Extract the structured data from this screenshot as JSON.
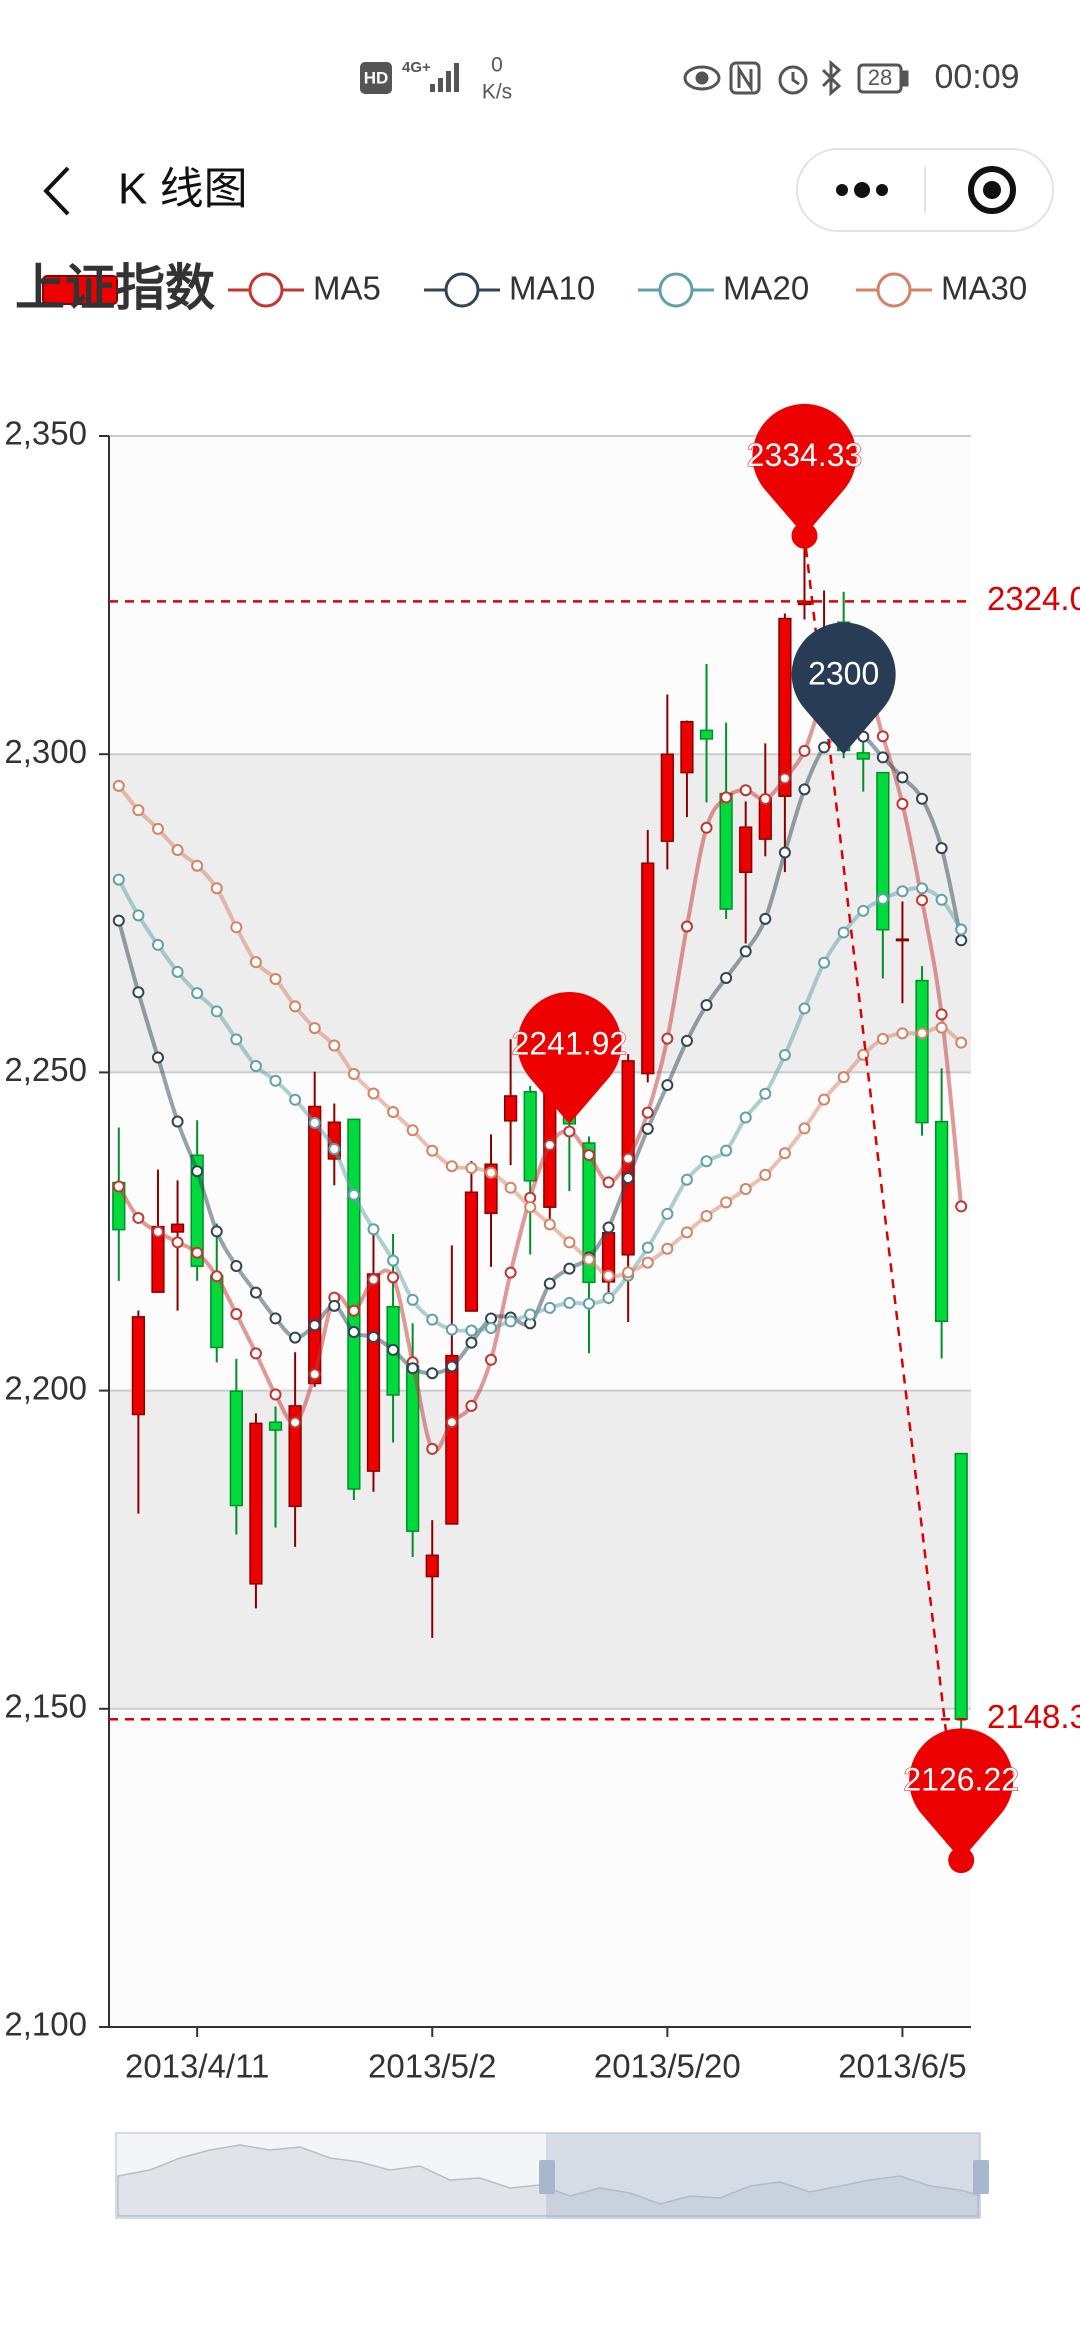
{
  "status_bar": {
    "hd": "HD",
    "network": "4G+",
    "speed_value": "0",
    "speed_unit": "K/s",
    "battery": "28",
    "time": "00:09"
  },
  "header": {
    "title": "K 线图"
  },
  "chart_data": {
    "type": "candlestick",
    "categories": [
      null,
      null,
      null,
      null,
      "2013/4/11",
      null,
      null,
      null,
      null,
      null,
      null,
      null,
      null,
      null,
      null,
      null,
      "2013/5/2",
      null,
      null,
      null,
      null,
      null,
      null,
      null,
      null,
      null,
      null,
      null,
      "2013/5/20",
      null,
      null,
      null,
      null,
      null,
      null,
      null,
      null,
      null,
      null,
      null,
      "2013/6/5",
      null,
      null,
      null
    ],
    "ylim": [
      2100,
      2350
    ],
    "yticks": [
      {
        "value": 2100,
        "label": "2,100"
      },
      {
        "value": 2150,
        "label": "2,150"
      },
      {
        "value": 2200,
        "label": "2,200"
      },
      {
        "value": 2250,
        "label": "2,250"
      },
      {
        "value": 2300,
        "label": "2,300"
      },
      {
        "value": 2350,
        "label": "2,350"
      }
    ],
    "grid": true,
    "split_area": [
      "#fcfcfc",
      "#ededed"
    ],
    "legend": "top-left",
    "mark_color": "#dd0000",
    "mark_point": {
      "value": 2300,
      "color": "#293c55"
    },
    "series": [
      {
        "name": "上证指数",
        "type": "candlestick",
        "up_color": "#ec0000",
        "up_border": "#8a0000",
        "down_color": "#00da3c",
        "down_border": "#008f28",
        "values": [
          [
            2232.69,
            2225.29,
            2217.25,
            2241.34
          ],
          [
            2196.24,
            2211.59,
            2180.67,
            2212.59
          ],
          [
            2215.47,
            2225.77,
            2215.47,
            2234.73
          ],
          [
            2224.93,
            2226.13,
            2212.56,
            2233.04
          ],
          [
            2236.98,
            2219.55,
            2217.26,
            2242.48
          ],
          [
            2218.09,
            2206.78,
            2204.44,
            2226.26
          ],
          [
            2199.91,
            2181.94,
            2177.39,
            2204.99
          ],
          [
            2169.63,
            2194.85,
            2165.78,
            2196.43
          ],
          [
            2195.03,
            2193.8,
            2178.47,
            2197.51
          ],
          [
            2181.82,
            2197.6,
            2175.44,
            2206.03
          ],
          [
            2201.12,
            2244.64,
            2200.58,
            2250.11
          ],
          [
            2236.4,
            2242.17,
            2232.26,
            2245.12
          ],
          [
            2242.62,
            2184.54,
            2182.81,
            2242.62
          ],
          [
            2187.35,
            2218.32,
            2184.11,
            2226.12
          ],
          [
            2213.19,
            2199.31,
            2191.85,
            2224.63
          ],
          [
            2203.89,
            2177.91,
            2173.86,
            2210.58
          ],
          [
            2170.78,
            2174.12,
            2161.14,
            2179.65
          ],
          [
            2179.05,
            2205.5,
            2179.05,
            2222.81
          ],
          [
            2212.5,
            2231.17,
            2212.5,
            2236.07
          ],
          [
            2227.86,
            2235.57,
            2219.44,
            2240.26
          ],
          [
            2242.39,
            2246.3,
            2235.42,
            2255.21
          ],
          [
            2246.96,
            2232.97,
            2221.38,
            2247.86
          ],
          [
            2228.82,
            2246.83,
            2225.81,
            2247.67
          ],
          [
            2247.68,
            2241.92,
            2231.36,
            2250.85
          ],
          [
            2238.9,
            2217.01,
            2205.87,
            2239.93
          ],
          [
            2217.09,
            2224.8,
            2213.58,
            2225.19
          ],
          [
            2221.34,
            2251.81,
            2210.77,
            2252.87
          ],
          [
            2249.81,
            2282.87,
            2248.41,
            2288.09
          ],
          [
            2286.33,
            2299.99,
            2281.9,
            2309.39
          ],
          [
            2297.11,
            2305.11,
            2290.12,
            2305.3
          ],
          [
            2303.75,
            2302.4,
            2292.43,
            2314.18
          ],
          [
            2293.81,
            2275.67,
            2274.1,
            2304.95
          ],
          [
            2281.45,
            2288.53,
            2270.25,
            2292.59
          ],
          [
            2286.66,
            2293.08,
            2283.94,
            2301.7
          ],
          [
            2293.4,
            2321.32,
            2281.47,
            2322.1
          ],
          [
            2323.54,
            2324.02,
            2321.17,
            2334.33
          ],
          [
            2316.25,
            2317.75,
            2310.49,
            2325.72
          ],
          [
            2320.74,
            2300.59,
            2299.37,
            2325.53
          ],
          [
            2300.21,
            2299.25,
            2294.11,
            2313.43
          ],
          [
            2297.1,
            2272.42,
            2264.76,
            2297.1
          ],
          [
            2270.71,
            2270.93,
            2260.87,
            2276.86
          ],
          [
            2264.43,
            2242.11,
            2240.07,
            2266.69
          ],
          [
            2242.26,
            2210.9,
            2205.07,
            2250.63
          ],
          [
            2190.1,
            2148.35,
            2126.22,
            2190.1
          ]
        ]
      },
      {
        "name": "MA5",
        "type": "line",
        "color": "#c23531",
        "values": [
          2232.07,
          2227.13,
          2224.96,
          2223.3,
          2221.67,
          2217.96,
          2212.03,
          2205.85,
          2199.38,
          2194.99,
          2202.57,
          2214.61,
          2212.55,
          2217.45,
          2217.8,
          2204.45,
          2190.84,
          2195.03,
          2197.6,
          2204.85,
          2218.53,
          2230.3,
          2238.57,
          2240.72,
          2237.01,
          2232.71,
          2236.47,
          2243.68,
          2255.3,
          2272.92,
          2288.44,
          2293.21,
          2294.34,
          2292.96,
          2296.2,
          2300.52,
          2308.94,
          2311.35,
          2312.59,
          2302.81,
          2292.19,
          2277.06,
          2259.12,
          2228.94
        ]
      },
      {
        "name": "MA10",
        "type": "line",
        "color": "#2f4554",
        "values": [
          2273.85,
          2262.59,
          2252.34,
          2242.28,
          2234.47,
          2225.02,
          2219.58,
          2215.4,
          2211.34,
          2208.33,
          2210.27,
          2213.32,
          2209.2,
          2208.42,
          2206.4,
          2203.51,
          2202.73,
          2203.79,
          2207.53,
          2211.33,
          2211.49,
          2210.57,
          2216.8,
          2219.16,
          2220.93,
          2225.62,
          2233.39,
          2241.13,
          2248.01,
          2254.96,
          2260.57,
          2264.84,
          2269.01,
          2274.13,
          2284.56,
          2294.48,
          2301.07,
          2302.85,
          2302.77,
          2299.5,
          2296.36,
          2293.0,
          2285.24,
          2270.76
        ]
      },
      {
        "name": "MA20",
        "type": "line",
        "color": "#61a0a8",
        "values": [
          2280.3,
          2274.67,
          2270.03,
          2265.8,
          2262.45,
          2259.59,
          2255.18,
          2251.0,
          2248.69,
          2245.7,
          2242.06,
          2237.96,
          2230.77,
          2225.35,
          2220.43,
          2214.26,
          2211.15,
          2209.6,
          2209.44,
          2209.83,
          2210.88,
          2211.95,
          2213.0,
          2213.79,
          2213.66,
          2214.56,
          2218.06,
          2222.46,
          2227.77,
          2233.14,
          2236.03,
          2237.71,
          2242.91,
          2246.64,
          2252.74,
          2260.05,
          2267.23,
          2271.99,
          2275.39,
          2277.23,
          2278.46,
          2278.92,
          2277.12,
          2272.45
        ]
      },
      {
        "name": "MA30",
        "type": "line",
        "color": "#d48265",
        "values": [
          2295.02,
          2291.21,
          2288.26,
          2284.94,
          2282.48,
          2278.93,
          2272.81,
          2267.32,
          2264.67,
          2260.38,
          2256.96,
          2254.22,
          2249.75,
          2246.68,
          2243.77,
          2240.9,
          2237.69,
          2235.26,
          2234.97,
          2234.24,
          2231.87,
          2228.83,
          2226.11,
          2223.29,
          2220.6,
          2218.05,
          2218.57,
          2220.11,
          2222.29,
          2224.87,
          2227.44,
          2229.58,
          2231.67,
          2233.9,
          2237.29,
          2241.2,
          2245.73,
          2249.25,
          2252.77,
          2255.26,
          2256.14,
          2256.14,
          2257.02,
          2254.68
        ]
      }
    ]
  }
}
